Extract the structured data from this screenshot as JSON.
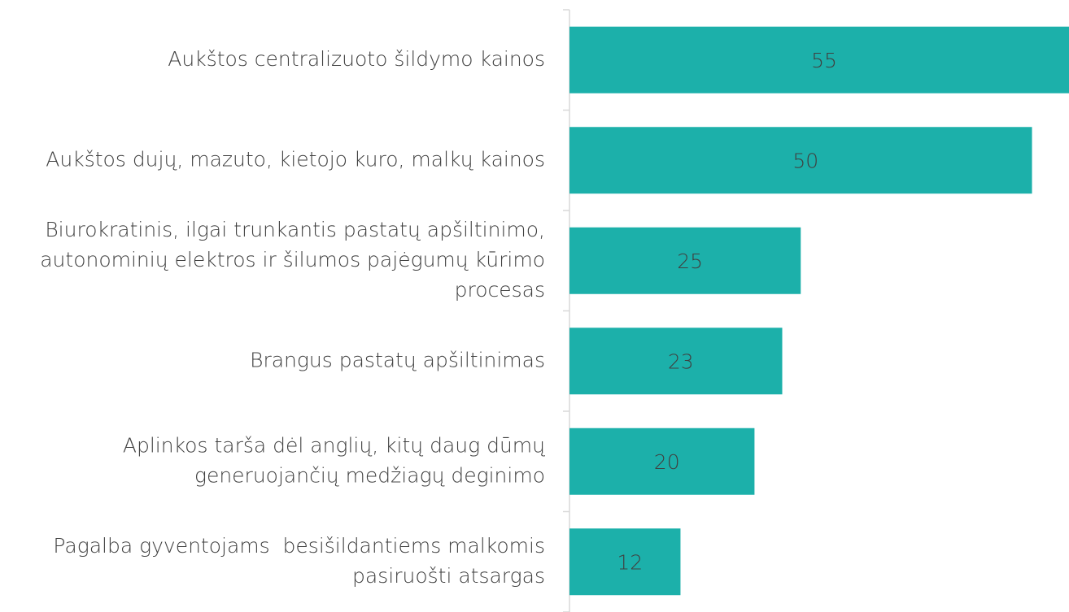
{
  "chart_data": {
    "type": "barh",
    "categories": [
      "Aukštos centralizuoto šildymo kainos",
      "Aukštos dujų, mazuto, kietojo kuro, malkų kainos",
      "Biurokratinis, ilgai trunkantis pastatų apšiltinimo,\nautonominių elektros ir šilumos pajėgumų kūrimo\nprocesas",
      "Brangus pastatų apšiltinimas",
      "Aplinkos tarša dėl anglių, kitų daug dūmų\ngeneruojančių medžiagų deginimo",
      "Pagalba gyventojams  besišildantiems malkomis\npasiruošti atsargas"
    ],
    "values": [
      55,
      50,
      25,
      23,
      20,
      12
    ],
    "color": "#1cb0aa",
    "xlim": [
      0,
      54
    ]
  }
}
